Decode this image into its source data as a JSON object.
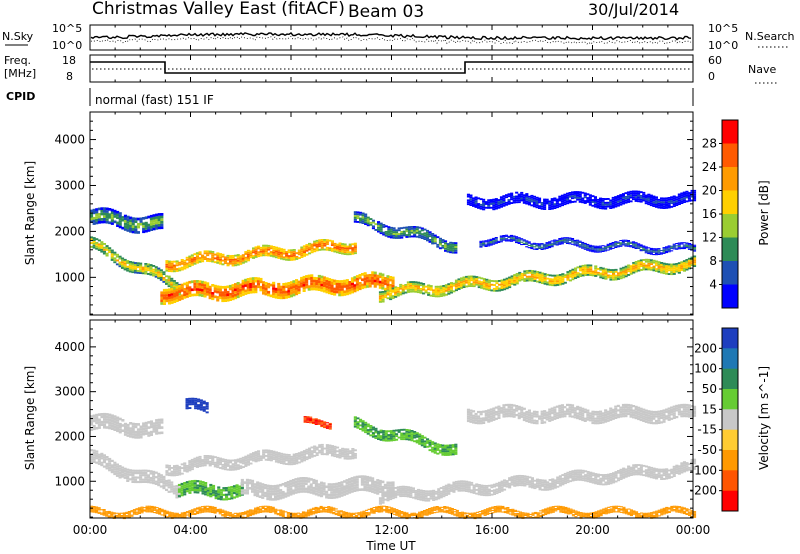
{
  "header": {
    "title": "Christmas Valley East (fitACF)",
    "beam": "Beam 03",
    "date": "30/Jul/2014"
  },
  "aux": {
    "nsky_label": "N.Sky",
    "nsky_ticks": [
      "10^5",
      "10^0"
    ],
    "nsearch_label": "N.Search",
    "nsearch_ticks": [
      "10^5",
      "10^0"
    ],
    "freq_label": "Freq.",
    "freq_unit": "[MHz]",
    "freq_ticks": [
      "18",
      "8"
    ],
    "nave_label": "Nave",
    "nave_ticks": [
      "60",
      "0"
    ],
    "cpid_label": "CPID",
    "cpid_text": "normal (fast) 151 IF"
  },
  "chart_data": [
    {
      "type": "heatmap",
      "title": "",
      "xlabel": "Time UT",
      "ylabel": "Slant Range [km]",
      "x_ticks": [
        "00:00",
        "04:00",
        "08:00",
        "12:00",
        "16:00",
        "20:00",
        "00:00"
      ],
      "y_ticks": [
        "1000",
        "2000",
        "3000",
        "4000"
      ],
      "xlim": [
        0,
        24
      ],
      "ylim": [
        180,
        4600
      ],
      "colorbar_label": "Power [dB]",
      "colorbar_ticks": [
        "28",
        "24",
        "20",
        "16",
        "12",
        "8",
        "4"
      ],
      "colorbar_colors": [
        "#ff0000",
        "#ff5a00",
        "#ff9b00",
        "#ffd000",
        "#9acd32",
        "#2e8b57",
        "#1e50b4",
        "#0000ff"
      ],
      "bands": [
        {
          "from": 0.0,
          "to": 2.8,
          "range_start": 2300,
          "range_end": 2150,
          "width": 350,
          "level": 14
        },
        {
          "from": 0.0,
          "to": 3.5,
          "range_start": 1700,
          "range_end": 800,
          "width": 250,
          "level": 20
        },
        {
          "from": 3.0,
          "to": 10.5,
          "range_start": 1300,
          "range_end": 1700,
          "width": 250,
          "level": 26
        },
        {
          "from": 2.8,
          "to": 12.0,
          "range_start": 650,
          "range_end": 900,
          "width": 350,
          "level": 28
        },
        {
          "from": 10.5,
          "to": 14.5,
          "range_start": 2250,
          "range_end": 1700,
          "width": 250,
          "level": 14
        },
        {
          "from": 11.5,
          "to": 24.0,
          "range_start": 650,
          "range_end": 1300,
          "width": 250,
          "level": 22
        },
        {
          "from": 15.0,
          "to": 24.0,
          "range_start": 2650,
          "range_end": 2700,
          "width": 250,
          "level": 6
        },
        {
          "from": 15.5,
          "to": 24.0,
          "range_start": 1800,
          "range_end": 1600,
          "width": 150,
          "level": 10
        }
      ]
    },
    {
      "type": "heatmap",
      "title": "",
      "xlabel": "Time UT",
      "ylabel": "Slant Range [km]",
      "x_ticks": [
        "00:00",
        "04:00",
        "08:00",
        "12:00",
        "16:00",
        "20:00",
        "00:00"
      ],
      "y_ticks": [
        "1000",
        "2000",
        "3000",
        "4000"
      ],
      "xlim": [
        0,
        24
      ],
      "ylim": [
        180,
        4600
      ],
      "colorbar_label": "Velocity [m s^-1]",
      "colorbar_ticks": [
        "200",
        "100",
        "50",
        "15",
        "-15",
        "-50",
        "-100",
        "-200"
      ],
      "colorbar_colors": [
        "#1e3fbf",
        "#1f78b4",
        "#2e8b57",
        "#66cc33",
        "#c8c8c8",
        "#ffcc33",
        "#ff9900",
        "#ff5500",
        "#ff0000"
      ],
      "bands": [
        {
          "from": 0.0,
          "to": 2.8,
          "range_start": 2300,
          "range_end": 2150,
          "width": 350,
          "velocity": 0
        },
        {
          "from": 0.0,
          "to": 3.5,
          "range_start": 1500,
          "range_end": 800,
          "width": 300,
          "velocity": 0
        },
        {
          "from": 3.0,
          "to": 10.5,
          "range_start": 1300,
          "range_end": 1700,
          "width": 250,
          "velocity": 0
        },
        {
          "from": 3.5,
          "to": 6.0,
          "range_start": 800,
          "range_end": 800,
          "width": 300,
          "velocity": 30
        },
        {
          "from": 6.0,
          "to": 12.0,
          "range_start": 800,
          "range_end": 900,
          "width": 350,
          "velocity": 0
        },
        {
          "from": 10.5,
          "to": 14.5,
          "range_start": 2250,
          "range_end": 1700,
          "width": 250,
          "velocity": 30
        },
        {
          "from": 11.5,
          "to": 24.0,
          "range_start": 650,
          "range_end": 1300,
          "width": 250,
          "velocity": 0
        },
        {
          "from": 15.0,
          "to": 24.0,
          "range_start": 2500,
          "range_end": 2500,
          "width": 300,
          "velocity": 0
        },
        {
          "from": 0.0,
          "to": 24.0,
          "range_start": 300,
          "range_end": 300,
          "width": 150,
          "velocity": -60
        },
        {
          "from": 3.8,
          "to": 4.6,
          "range_start": 2700,
          "range_end": 2600,
          "width": 250,
          "velocity": 210
        },
        {
          "from": 8.5,
          "to": 9.5,
          "range_start": 2300,
          "range_end": 2300,
          "width": 150,
          "velocity": -150
        }
      ]
    }
  ]
}
